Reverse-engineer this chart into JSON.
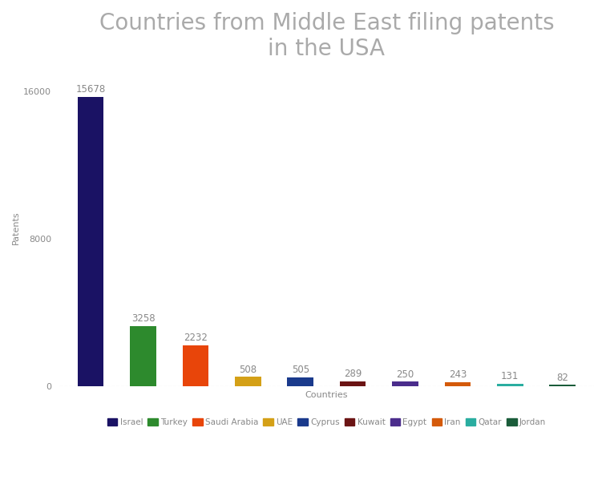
{
  "title": "Countries from Middle East filing patents\nin the USA",
  "title_color": "#aaaaaa",
  "xlabel": "Countries",
  "ylabel": "Patents",
  "categories": [
    "Israel",
    "Turkey",
    "Saudi Arabia",
    "UAE",
    "Cyprus",
    "Kuwait",
    "Egypt",
    "Iran",
    "Qatar",
    "Jordan"
  ],
  "values": [
    15678,
    3258,
    2232,
    508,
    505,
    289,
    250,
    243,
    131,
    82
  ],
  "colors": [
    "#1a1264",
    "#2d8a2d",
    "#e8450a",
    "#d4a017",
    "#1a3a8c",
    "#6b1414",
    "#4b2d8c",
    "#d45a0a",
    "#2aada0",
    "#1a5c3a"
  ],
  "yticks": [
    0,
    8000,
    16000
  ],
  "ylim": [
    0,
    17200
  ],
  "background_color": "#ffffff",
  "label_color": "#888888",
  "value_fontsize": 8.5,
  "axis_label_fontsize": 8,
  "title_fontsize": 20,
  "legend_fontsize": 7.5
}
